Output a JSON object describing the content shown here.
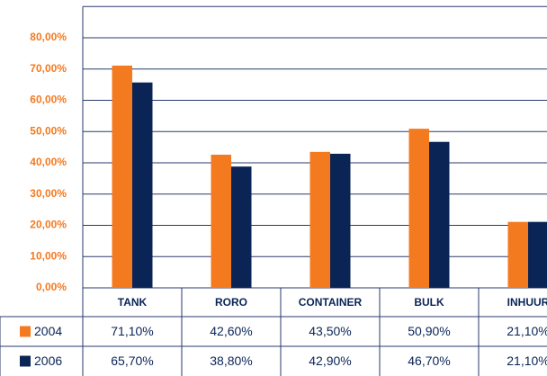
{
  "chart_data": {
    "type": "bar",
    "categories": [
      "TANK",
      "RORO",
      "CONTAINER",
      "BULK",
      "INHUUR"
    ],
    "series": [
      {
        "name": "2004",
        "color": "#f47a20",
        "values": [
          71.1,
          42.6,
          43.5,
          50.9,
          21.1
        ],
        "value_labels": [
          "71,10%",
          "42,60%",
          "43,50%",
          "50,90%",
          "21,10%"
        ]
      },
      {
        "name": "2006",
        "color": "#0a2456",
        "values": [
          65.7,
          38.8,
          42.9,
          46.7,
          21.1
        ],
        "value_labels": [
          "65,70%",
          "38,80%",
          "42,90%",
          "46,70%",
          "21,10%"
        ]
      }
    ],
    "ylim": [
      0,
      90
    ],
    "yticks": [
      {
        "value": 0,
        "label": "0,00%"
      },
      {
        "value": 10,
        "label": "10,00%"
      },
      {
        "value": 20,
        "label": "20,00%"
      },
      {
        "value": 30,
        "label": "30,00%"
      },
      {
        "value": 40,
        "label": "40,00%"
      },
      {
        "value": 50,
        "label": "50,00%"
      },
      {
        "value": 60,
        "label": "60,00%"
      },
      {
        "value": 70,
        "label": "70,00%"
      },
      {
        "value": 80,
        "label": "80,00%"
      }
    ],
    "grid": true
  }
}
